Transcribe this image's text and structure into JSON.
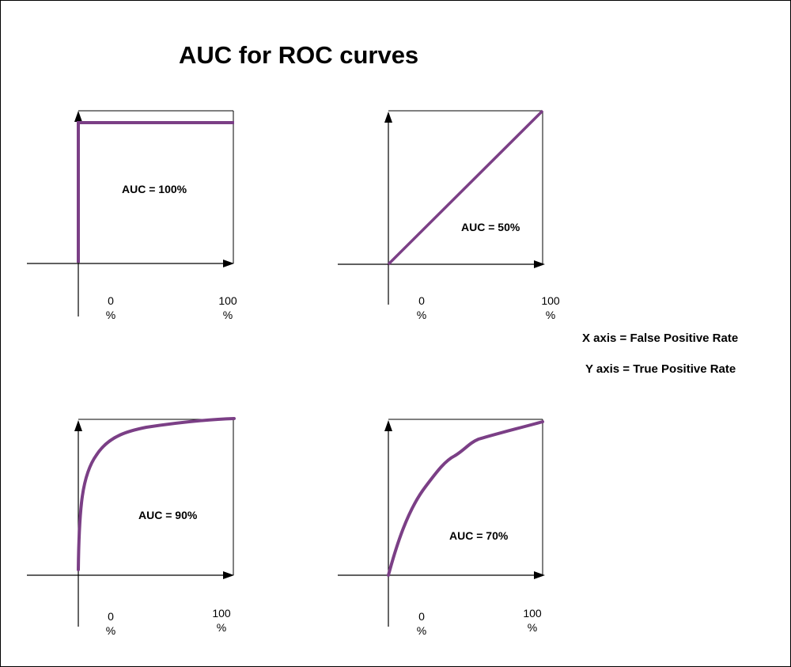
{
  "title": "AUC for ROC curves",
  "legend": {
    "x_axis": "X axis = False Positive Rate",
    "y_axis": "Y axis = True Positive Rate"
  },
  "colors": {
    "curve": "#7b3f86",
    "axis": "#000000"
  },
  "panels": [
    {
      "auc_label": "AUC = 100%",
      "tick_start": {
        "value": "0",
        "unit": "%"
      },
      "tick_end": {
        "value": "100",
        "unit": "%"
      }
    },
    {
      "auc_label": "AUC = 50%",
      "tick_start": {
        "value": "0",
        "unit": "%"
      },
      "tick_end": {
        "value": "100",
        "unit": "%"
      }
    },
    {
      "auc_label": "AUC = 90%",
      "tick_start": {
        "value": "0",
        "unit": "%"
      },
      "tick_end": {
        "value": "100",
        "unit": "%"
      }
    },
    {
      "auc_label": "AUC = 70%",
      "tick_start": {
        "value": "0",
        "unit": "%"
      },
      "tick_end": {
        "value": "100",
        "unit": "%"
      }
    }
  ]
}
